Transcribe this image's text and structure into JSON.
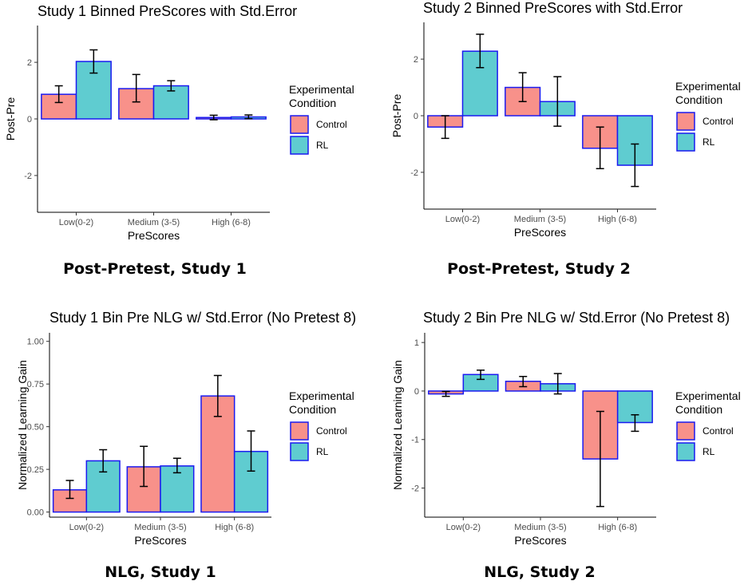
{
  "colors": {
    "control_fill": "#F8918A",
    "rl_fill": "#5FCCD0",
    "bar_stroke": "#1A1AF0",
    "axis": "#000000",
    "error_bar": "#000000"
  },
  "legend": {
    "title_line1": "Experimental",
    "title_line2": "Condition",
    "items": [
      "Control",
      "RL"
    ]
  },
  "captions": [
    "Post-Pretest, Study 1",
    "Post-Pretest, Study 2",
    "NLG, Study 1",
    "NLG, Study 2"
  ],
  "chart_data": [
    {
      "type": "bar",
      "title": "Study 1 Binned PreScores with Std.Error",
      "xlabel": "PreScores",
      "ylabel": "Post-Pre",
      "categories": [
        "Low(0-2)",
        "Medium (3-5)",
        "High (6-8)"
      ],
      "ylim": [
        -3.3,
        3.3
      ],
      "yticks": [
        -2,
        0,
        2
      ],
      "yticklabels": [
        "-2",
        "0",
        "2"
      ],
      "series": [
        {
          "name": "Control",
          "values": [
            0.87,
            1.07,
            0.05
          ],
          "err_low": [
            0.58,
            0.6,
            -0.03
          ],
          "err_high": [
            1.17,
            1.57,
            0.13
          ]
        },
        {
          "name": "RL",
          "values": [
            2.03,
            1.17,
            0.07
          ],
          "err_low": [
            1.62,
            0.99,
            0.01
          ],
          "err_high": [
            2.44,
            1.35,
            0.14
          ]
        }
      ]
    },
    {
      "type": "bar",
      "title": "Study 2 Binned PreScores with Std.Error",
      "xlabel": "PreScores",
      "ylabel": "Post-Pre",
      "categories": [
        "Low(0-2)",
        "Medium (3-5)",
        "High (6-8)"
      ],
      "ylim": [
        -3.3,
        3.3
      ],
      "yticks": [
        -2,
        0,
        2
      ],
      "yticklabels": [
        "-2",
        "0",
        "2"
      ],
      "series": [
        {
          "name": "Control",
          "values": [
            -0.4,
            1.0,
            -1.15
          ],
          "err_low": [
            -0.8,
            0.5,
            -1.87
          ],
          "err_high": [
            0.0,
            1.52,
            -0.4
          ]
        },
        {
          "name": "RL",
          "values": [
            2.28,
            0.5,
            -1.75
          ],
          "err_low": [
            1.7,
            -0.37,
            -2.5
          ],
          "err_high": [
            2.88,
            1.38,
            -1.0
          ]
        }
      ]
    },
    {
      "type": "bar",
      "title": "Study 1 Bin Pre NLG w/ Std.Error (No Pretest 8)",
      "xlabel": "PreScores",
      "ylabel": "Normalized Learning Gain",
      "categories": [
        "Low(0-2)",
        "Medium (3-5)",
        "High (6-8)"
      ],
      "ylim": [
        -0.03,
        1.05
      ],
      "yticks": [
        0,
        0.25,
        0.5,
        0.75,
        1.0
      ],
      "yticklabels": [
        "0.00",
        "0.25",
        "0.50",
        "0.75",
        "1.00"
      ],
      "series": [
        {
          "name": "Control",
          "values": [
            0.13,
            0.265,
            0.68
          ],
          "err_low": [
            0.08,
            0.15,
            0.56
          ],
          "err_high": [
            0.185,
            0.385,
            0.8
          ]
        },
        {
          "name": "RL",
          "values": [
            0.3,
            0.27,
            0.355
          ],
          "err_low": [
            0.235,
            0.23,
            0.24
          ],
          "err_high": [
            0.365,
            0.315,
            0.475
          ]
        }
      ]
    },
    {
      "type": "bar",
      "title": "Study 2 Bin Pre NLG w/ Std.Error (No Pretest 8)",
      "xlabel": "PreScores",
      "ylabel": "Normalized Learning Gain",
      "categories": [
        "Low(0-2)",
        "Medium (3-5)",
        "High (6-8)"
      ],
      "ylim": [
        -2.6,
        1.2
      ],
      "yticks": [
        -2,
        -1,
        0,
        1
      ],
      "yticklabels": [
        "-2",
        "-1",
        "0",
        "1"
      ],
      "series": [
        {
          "name": "Control",
          "values": [
            -0.06,
            0.2,
            -1.4
          ],
          "err_low": [
            -0.11,
            0.09,
            -2.38
          ],
          "err_high": [
            -0.01,
            0.3,
            -0.42
          ]
        },
        {
          "name": "RL",
          "values": [
            0.34,
            0.15,
            -0.65
          ],
          "err_low": [
            0.24,
            -0.06,
            -0.83
          ],
          "err_high": [
            0.43,
            0.36,
            -0.49
          ]
        }
      ]
    }
  ]
}
